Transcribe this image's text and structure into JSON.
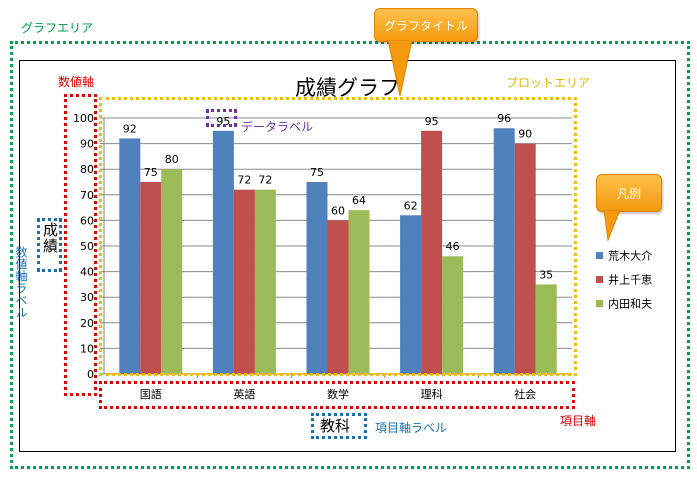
{
  "chart_data": {
    "type": "bar",
    "title": "成績グラフ",
    "xlabel": "教科",
    "ylabel": "成績",
    "categories": [
      "国語",
      "英語",
      "数学",
      "理科",
      "社会"
    ],
    "ylim": [
      0,
      100
    ],
    "yticks": [
      0,
      10,
      20,
      30,
      40,
      50,
      60,
      70,
      80,
      90,
      100
    ],
    "grid": true,
    "legend_position": "right",
    "series": [
      {
        "name": "荒木大介",
        "color": "#4f81bd",
        "values": [
          92,
          95,
          75,
          62,
          96
        ]
      },
      {
        "name": "井上千恵",
        "color": "#c0504d",
        "values": [
          75,
          72,
          60,
          95,
          90
        ]
      },
      {
        "name": "内田和夫",
        "color": "#9bbb59",
        "values": [
          80,
          72,
          64,
          46,
          35
        ]
      }
    ]
  },
  "annotations": {
    "graph_area": {
      "text": "グラフエリア",
      "color": "#00a050"
    },
    "plot_area": {
      "text": "プロットエリア",
      "color": "#e8b400"
    },
    "value_axis": {
      "text": "数値軸",
      "color": "#e00000"
    },
    "category_axis": {
      "text": "項目軸",
      "color": "#e00000"
    },
    "value_axis_label": {
      "text": "数値軸ラベル",
      "color": "#1a6fb0"
    },
    "category_axis_label": {
      "text": "項目軸ラベル",
      "color": "#1a6fb0"
    },
    "data_label": {
      "text": "データラベル",
      "color": "#7030a0"
    },
    "graph_title_callout": {
      "text": "グラフタイトル"
    },
    "legend_callout": {
      "text": "凡例"
    }
  }
}
